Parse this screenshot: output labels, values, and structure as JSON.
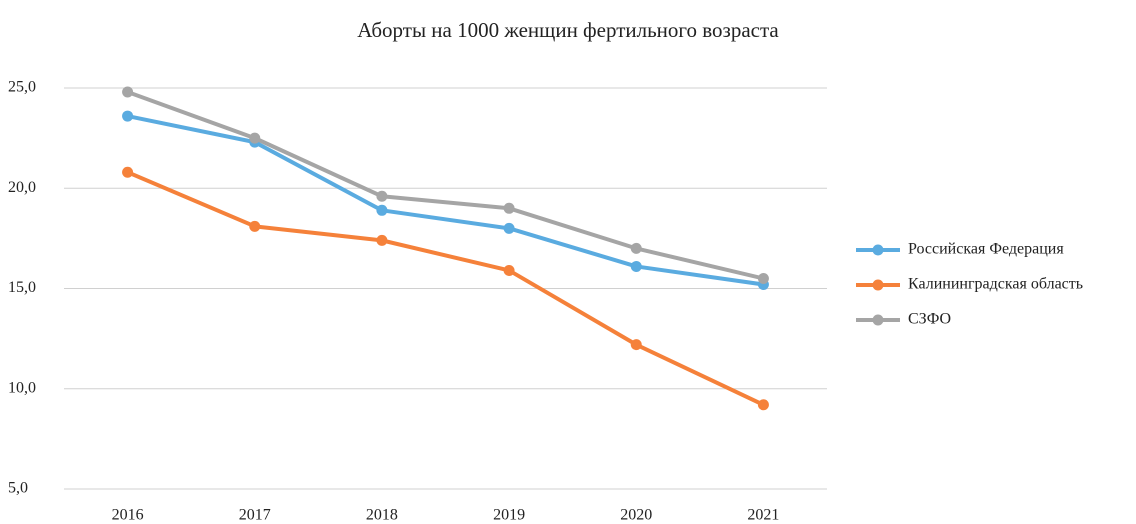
{
  "chart_data": {
    "type": "line",
    "title": "Аборты на 1000 женщин фертильного возраста",
    "categories": [
      "2016",
      "2017",
      "2018",
      "2019",
      "2020",
      "2021"
    ],
    "series": [
      {
        "name": "Российская Федерация",
        "color": "#5aabe0",
        "values": [
          23.6,
          22.3,
          18.9,
          18.0,
          16.1,
          15.2
        ]
      },
      {
        "name": "Калининградская область",
        "color": "#f5813a",
        "values": [
          20.8,
          18.1,
          17.4,
          15.9,
          12.2,
          9.2
        ]
      },
      {
        "name": "СЗФО",
        "color": "#a5a5a5",
        "values": [
          24.8,
          22.5,
          19.6,
          19.0,
          17.0,
          15.5
        ]
      }
    ],
    "ylim": [
      5,
      25
    ],
    "yticks": [
      {
        "value": 5,
        "label": "5,0"
      },
      {
        "value": 10,
        "label": "10,0"
      },
      {
        "value": 15,
        "label": "15,0"
      },
      {
        "value": 20,
        "label": "20,0"
      },
      {
        "value": 25,
        "label": "25,0"
      }
    ],
    "grid": true,
    "legend": "right"
  }
}
